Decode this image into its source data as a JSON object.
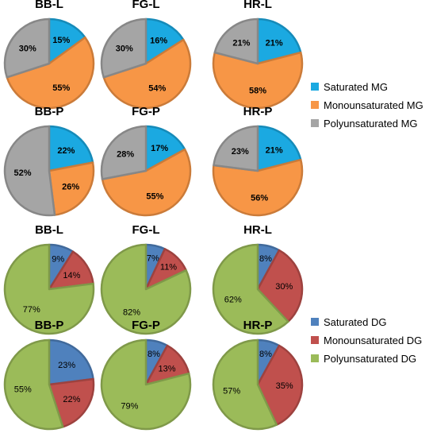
{
  "colors": {
    "sat_mg": "#1ba9e1",
    "mono_mg": "#f79646",
    "poly_mg": "#a5a5a5",
    "sat_dg": "#4f81bd",
    "mono_dg": "#c0504d",
    "poly_dg": "#9bbb59"
  },
  "chart_data": [
    {
      "type": "pie",
      "group": "MG",
      "legend": [
        "Saturated MG",
        "Monounsaturated MG",
        "Polyunsaturated MG"
      ],
      "panels": [
        {
          "title": "BB-L",
          "values": [
            15,
            55,
            30
          ]
        },
        {
          "title": "FG-L",
          "values": [
            16,
            54,
            30
          ]
        },
        {
          "title": "HR-L",
          "values": [
            21,
            58,
            21
          ]
        },
        {
          "title": "BB-P",
          "values": [
            22,
            26,
            52
          ]
        },
        {
          "title": "FG-P",
          "values": [
            17,
            55,
            28
          ]
        },
        {
          "title": "HR-P",
          "values": [
            21,
            56,
            23
          ]
        }
      ]
    },
    {
      "type": "pie",
      "group": "DG",
      "legend": [
        "Saturated DG",
        "Monounsaturated DG",
        "Polyunsaturated DG"
      ],
      "panels": [
        {
          "title": "BB-L",
          "values": [
            9,
            14,
            77
          ]
        },
        {
          "title": "FG-L",
          "values": [
            7,
            11,
            82
          ]
        },
        {
          "title": "HR-L",
          "values": [
            8,
            30,
            62
          ]
        },
        {
          "title": "BB-P",
          "values": [
            23,
            22,
            55
          ]
        },
        {
          "title": "FG-P",
          "values": [
            8,
            13,
            79
          ]
        },
        {
          "title": "HR-P",
          "values": [
            8,
            35,
            57
          ]
        }
      ]
    }
  ]
}
